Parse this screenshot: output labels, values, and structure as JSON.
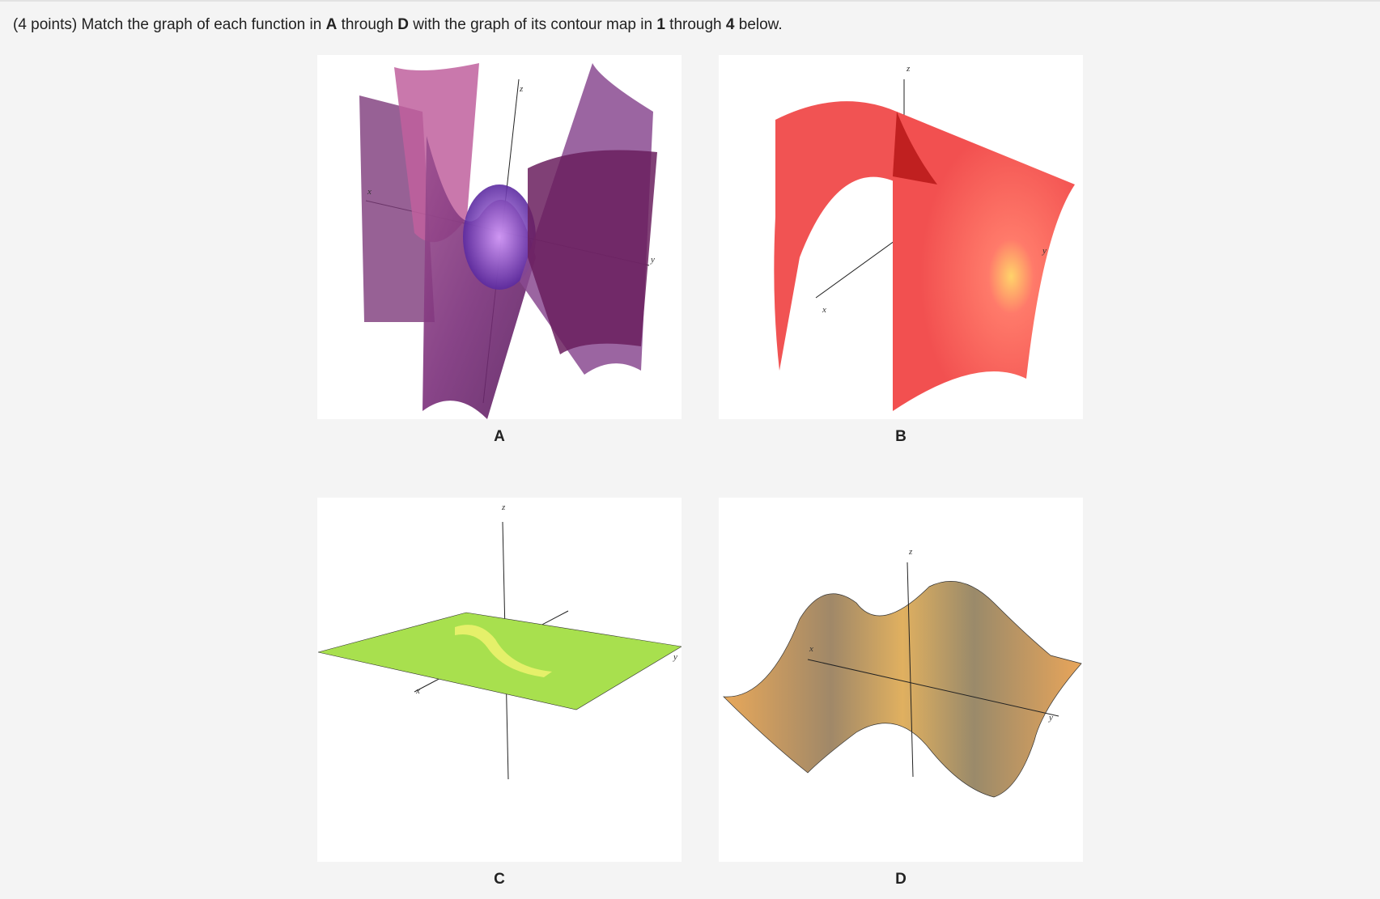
{
  "question": [
    "(4 points) Match the graph of each function in ",
    "A",
    " through ",
    "D",
    " with the graph of its contour map in ",
    "1",
    " through ",
    "4",
    " below."
  ],
  "figures": [
    {
      "label": "A",
      "axis_labels": [
        "x",
        "y",
        "z"
      ]
    },
    {
      "label": "B",
      "axis_labels": [
        "x",
        "y",
        "z"
      ]
    },
    {
      "label": "C",
      "axis_labels": [
        "x",
        "y",
        "z"
      ]
    },
    {
      "label": "D",
      "axis_labels": [
        "x",
        "y",
        "z"
      ]
    }
  ]
}
